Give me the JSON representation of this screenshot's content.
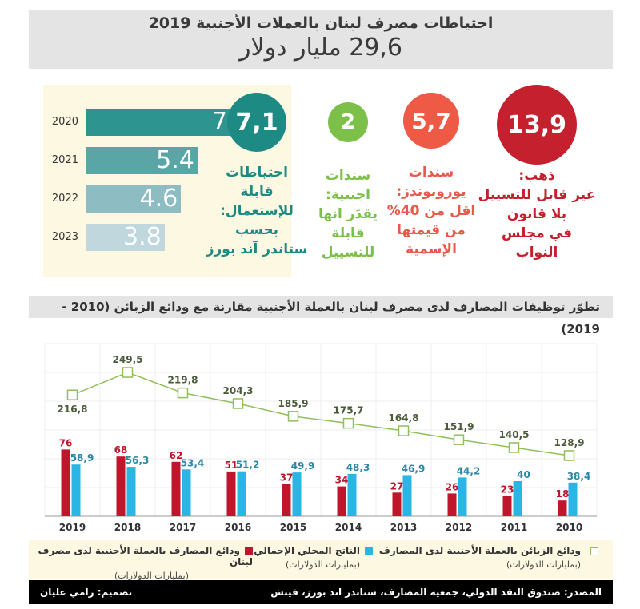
{
  "header": {
    "title": "احتياطات مصرف لبنان بالعملات الأجنبية 2019",
    "total": "29,6 مليار دولار"
  },
  "usable_reserves_forecast": {
    "items": [
      {
        "year": "2020",
        "value": 7,
        "label": "7",
        "color": "#2e9490"
      },
      {
        "year": "2021",
        "value": 5.4,
        "label": "5.4",
        "color": "#5aa5a6"
      },
      {
        "year": "2022",
        "value": 4.6,
        "label": "4.6",
        "color": "#8dbcc3"
      },
      {
        "year": "2023",
        "value": 3.8,
        "label": "3.8",
        "color": "#bfd7dd"
      }
    ]
  },
  "stats": [
    {
      "value": "7,1",
      "color": "#1e8a84",
      "text_color": "#1e8a84",
      "lines": [
        "احتياطات",
        "قابلة",
        "للإستعمال:",
        "بحسب",
        "ستاندر آند بورز"
      ]
    },
    {
      "value": "2",
      "color": "#7cc04a",
      "text_color": "#7cc04a",
      "lines": [
        "سندات",
        "اجنبية:",
        "يقدَر انها",
        "قابلة",
        "للتسييل"
      ]
    },
    {
      "value": "5,7",
      "color": "#ee5a45",
      "text_color": "#e55a4a",
      "lines": [
        "سندات",
        "يوروبوندز:",
        "اقل من 40%",
        "من قيمتها",
        "الإسمية"
      ]
    },
    {
      "value": "13,9",
      "color": "#c4202e",
      "text_color": "#c4202e",
      "lines": [
        "ذهب:",
        "غير قابل للتسييل",
        "بلا قانون",
        "في مجلس",
        "النواب"
      ]
    }
  ],
  "section_title": "تطوّر توظيفات المصارف لدى مصرف لبنان بالعملة الأجنبية مقارنة مع ودائع الزبائن (2010 - 2019)",
  "chart_data": {
    "type": "bar",
    "title": "تطوّر توظيفات المصارف لدى مصرف لبنان بالعملة الأجنبية مقارنة مع ودائع الزبائن (2010 - 2019)",
    "categories": [
      "2019",
      "2018",
      "2017",
      "2016",
      "2015",
      "2014",
      "2013",
      "2012",
      "2011",
      "2010"
    ],
    "series": [
      {
        "name": "ودائع المصارف بالعملة الأجنبية لدى مصرف لبنان",
        "type": "bar",
        "color": "#c0162b",
        "values": [
          76,
          68,
          62,
          51,
          37,
          34,
          27,
          26,
          23,
          18
        ],
        "labels": [
          "76",
          "68",
          "62",
          "51",
          "37",
          "34",
          "27",
          "26",
          "23",
          "18"
        ]
      },
      {
        "name": "الناتج المحلي الإجمالي",
        "type": "bar",
        "color": "#29b6e4",
        "values": [
          58.9,
          56.3,
          53.4,
          51.2,
          49.9,
          48.3,
          46.9,
          44.2,
          40,
          38.4
        ],
        "labels": [
          "58,9",
          "56,3",
          "53,4",
          "51,2",
          "49,9",
          "48,3",
          "46,9",
          "44,2",
          "40",
          "38,4"
        ]
      },
      {
        "name": "ودائع الزبائن بالعملة الأجنبية لدى المصارف",
        "type": "line",
        "color": "#8fbf5a",
        "values": [
          216.8,
          249.5,
          219.8,
          204.3,
          185.9,
          175.7,
          164.8,
          151.9,
          140.5,
          128.9
        ],
        "labels": [
          "216,8",
          "249,5",
          "219,8",
          "204,3",
          "185,9",
          "175,7",
          "164,8",
          "151,9",
          "140,5",
          "128,9"
        ]
      }
    ],
    "unit": "بمليارات الدولارات",
    "xlabel": "",
    "ylabel": "",
    "grid": true,
    "legend_position": "bottom"
  },
  "legend": [
    {
      "label": "ودائع الزبائن بالعملة الأجنبية لدى المصارف",
      "sub": "(بمليارات الدولارات)",
      "icon": "line-square-marker"
    },
    {
      "label": "الناتج المحلي الإجمالي",
      "sub": "(بمليارات الدولارات)",
      "icon": "blue-square"
    },
    {
      "label": "ودائع المصارف بالعملة الأجنبية لدى مصرف لبنان",
      "sub": "(بمليارات الدولارات)",
      "icon": "red-square"
    }
  ],
  "footer": {
    "source": "المصدر: صندوق النقد الدولي، جمعية المصارف، ستاندر اند بورز، فيتش",
    "design": "تصميم: رامي عليان"
  }
}
